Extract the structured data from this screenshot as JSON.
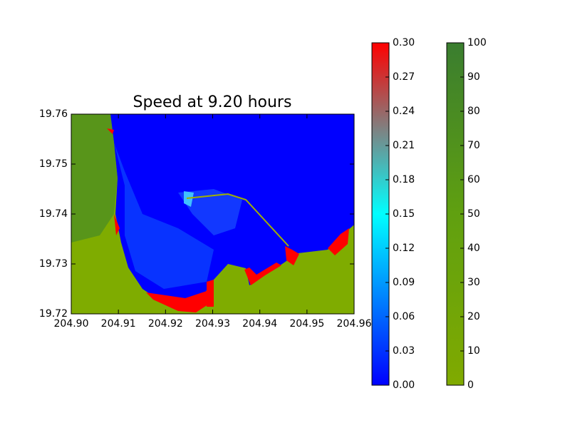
{
  "chart_data": {
    "type": "map",
    "title": "Speed at 9.20 hours",
    "xlim": [
      204.9,
      204.96
    ],
    "xticks": [
      {
        "value": 204.9,
        "label": "204.90"
      },
      204.91,
      204.92,
      204.93,
      204.94,
      204.95,
      204.96
    ],
    "ylim": [
      19.72,
      19.76
    ],
    "yticks": [
      19.72,
      19.73,
      19.74,
      19.75,
      19.76
    ],
    "colorbars": [
      {
        "lim": [
          0,
          0.3
        ],
        "colors": [
          "#0000ff",
          "#0080ff",
          "#00ffff",
          "#808080",
          "#ff0000"
        ],
        "ticks": [
          {
            "value": 0,
            "label": "0.00"
          },
          0.03,
          0.06,
          0.09,
          0.12,
          0.15,
          0.18,
          0.21,
          0.24,
          0.27,
          {
            "value": 0.3,
            "label": "0.30"
          }
        ]
      },
      {
        "lim": [
          0,
          100
        ],
        "colors": [
          "#80aa00",
          "#60a010",
          "#3a7d2f"
        ],
        "ticks": [
          0,
          10,
          20,
          30,
          40,
          50,
          60,
          70,
          80,
          90,
          100
        ]
      }
    ]
  }
}
